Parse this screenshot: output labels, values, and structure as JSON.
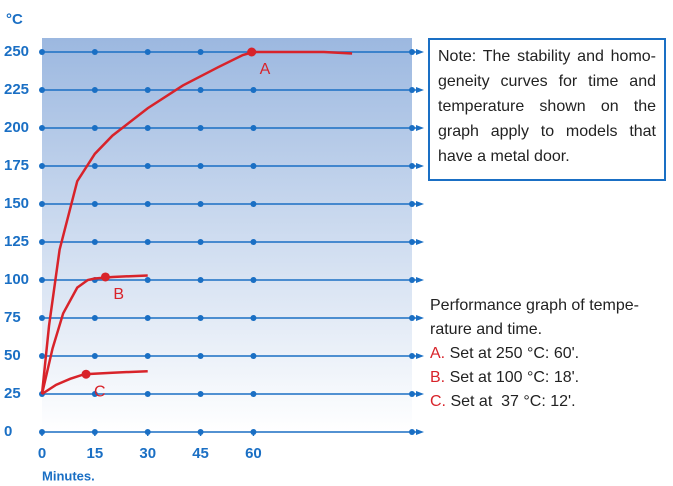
{
  "chart_data": {
    "type": "line",
    "y_label": "°C",
    "x_label": "Minutes.",
    "xlim": [
      0,
      105
    ],
    "ylim": [
      0,
      250
    ],
    "xticks": [
      0,
      15,
      30,
      45,
      60
    ],
    "yticks": [
      0,
      25,
      50,
      75,
      100,
      125,
      150,
      175,
      200,
      225,
      250
    ],
    "grid": true,
    "series": [
      {
        "name": "A",
        "color": "#d8232a",
        "x": [
          0,
          2,
          5,
          10,
          15,
          20,
          30,
          40,
          50,
          57,
          60,
          70,
          80,
          88
        ],
        "values": [
          25,
          70,
          120,
          165,
          183,
          195,
          213,
          228,
          240,
          248,
          250,
          250,
          250,
          249
        ],
        "marker": {
          "x": 59.5,
          "y": 250
        }
      },
      {
        "name": "B",
        "color": "#d8232a",
        "x": [
          0,
          3,
          6,
          10,
          13,
          15,
          20,
          30
        ],
        "values": [
          25,
          55,
          78,
          95,
          100,
          101,
          102,
          103
        ],
        "marker": {
          "x": 18,
          "y": 102
        }
      },
      {
        "name": "C",
        "color": "#d8232a",
        "x": [
          0,
          4,
          8,
          12,
          20,
          30
        ],
        "values": [
          25,
          31,
          35,
          38,
          39,
          40
        ],
        "marker": {
          "x": 12.5,
          "y": 38
        }
      }
    ]
  },
  "note": [
    "Note: The stability and homo-",
    "geneity curves for time and",
    "temperature shown on the",
    "graph apply to models that",
    "have a metal door."
  ],
  "performance": [
    "Performance graph of tempe-",
    "rature and time."
  ],
  "legend": [
    {
      "key": "A.",
      "text": "Set at 250 °C: 60'."
    },
    {
      "key": "B.",
      "text": "Set at 100 °C: 18'."
    },
    {
      "key": "C.",
      "text": "Set at  37 °C: 12'."
    }
  ]
}
